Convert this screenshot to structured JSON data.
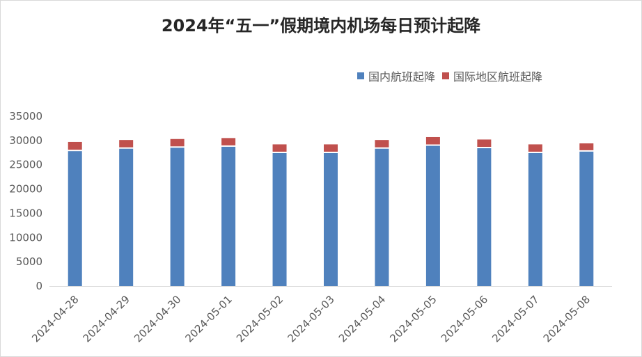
{
  "chart_data": {
    "type": "bar",
    "stacked": true,
    "title": "2024年“五一”假期境内机场每日预计起降",
    "categories": [
      "2024-04-28",
      "2024-04-29",
      "2024-04-30",
      "2024-05-01",
      "2024-05-02",
      "2024-05-03",
      "2024-05-04",
      "2024-05-05",
      "2024-05-06",
      "2024-05-07",
      "2024-05-08"
    ],
    "series": [
      {
        "name": "国内航班起降",
        "color": "#4f81bd",
        "values": [
          27800,
          28300,
          28500,
          28700,
          27400,
          27400,
          28300,
          28900,
          28400,
          27400,
          27700
        ]
      },
      {
        "name": "国际地区航班起降",
        "color": "#c0504d",
        "values": [
          1900,
          1800,
          1800,
          1800,
          1800,
          1800,
          1800,
          1800,
          1800,
          1800,
          1700
        ]
      }
    ],
    "ylim": [
      0,
      35000
    ],
    "yticks": [
      0,
      5000,
      10000,
      15000,
      20000,
      25000,
      30000,
      35000
    ],
    "grid": false,
    "legend_position": "top-right"
  }
}
